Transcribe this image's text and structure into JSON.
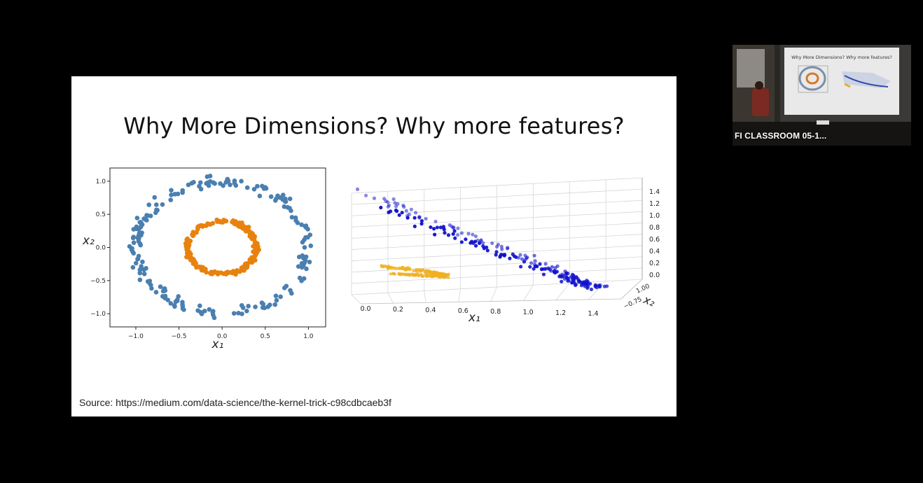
{
  "slide": {
    "title": "Why More Dimensions? Why more features?",
    "source": "Source: https://medium.com/data-science/the-kernel-trick-c98cdbcaeb3f"
  },
  "video_tile": {
    "label": "FI CLASSROOM 05-1...",
    "thumbnail_title": "Why More Dimensions? Why more features?"
  },
  "chart_data": [
    {
      "type": "scatter",
      "title": "",
      "xlabel": "x₁",
      "ylabel": "x₂",
      "xlim": [
        -1.3,
        1.2
      ],
      "ylim": [
        -1.2,
        1.2
      ],
      "xticks": [
        -1.0,
        -0.5,
        0.0,
        0.5,
        1.0
      ],
      "xtick_labels": [
        "−1.0",
        "−0.5",
        "0.0",
        "0.5",
        "1.0"
      ],
      "yticks": [
        -1.0,
        -0.5,
        0.0,
        0.5,
        1.0
      ],
      "ytick_labels": [
        "−1.0",
        "−0.5",
        "0.0",
        "0.5",
        "1.0"
      ],
      "grid": false,
      "series": [
        {
          "color": "#4a7fb0",
          "shape": "ring",
          "radius": 1.0,
          "count": 200
        },
        {
          "color": "#e8820e",
          "shape": "ring",
          "radius": 0.4,
          "count": 200
        }
      ]
    },
    {
      "type": "scatter3d",
      "title": "",
      "xlabel": "x₁",
      "ylabel": "x₂",
      "zlabel": "",
      "xticks": [
        0.0,
        0.2,
        0.4,
        0.6,
        0.8,
        1.0,
        1.2,
        1.4
      ],
      "xtick_labels": [
        "0.0",
        "0.2",
        "0.4",
        "0.6",
        "0.8",
        "1.0",
        "1.2",
        "1.4"
      ],
      "zticks": [
        0.0,
        0.2,
        0.4,
        0.6,
        0.8,
        1.0,
        1.2,
        1.4
      ],
      "ztick_labels": [
        "0.0",
        "0.2",
        "0.4",
        "0.6",
        "0.8",
        "1.0",
        "1.2",
        "1.4"
      ],
      "ytick_labels_visible": [
        "−0.75",
        "1.00"
      ],
      "grid": true,
      "series": [
        {
          "color": "#1010cc",
          "description_z": "z = x₁² + x₂² of outer ring",
          "count": 200
        },
        {
          "color": "#f0b020",
          "description_z": "z = x₁² + x₂² of inner ring",
          "count": 200
        }
      ]
    }
  ],
  "colors": {
    "background": "#000000",
    "slide": "#ffffff",
    "blue2d": "#4a7fb0",
    "orange2d": "#e8820e",
    "blue3d": "#1010cc",
    "yellow3d": "#f0b020"
  }
}
